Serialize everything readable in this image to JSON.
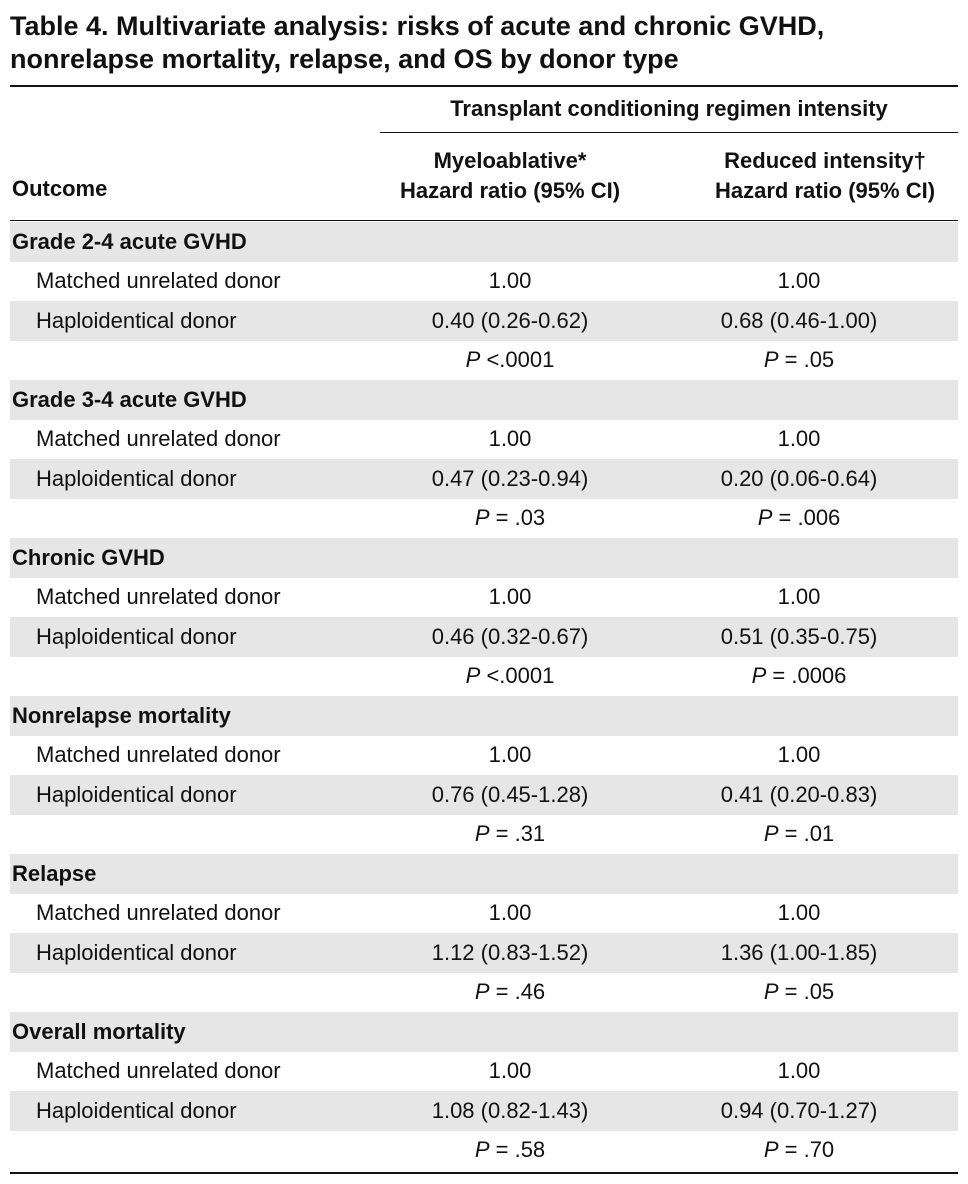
{
  "title": "Table 4. Multivariate analysis: risks of acute and chronic GVHD, nonrelapse mortality, relapse, and OS by donor type",
  "header": {
    "outcome": "Outcome",
    "spanning": "Transplant conditioning regimen intensity",
    "col1_line1": "Myeloablative*",
    "col1_line2": "Hazard ratio (95% CI)",
    "col2_line1": "Reduced intensity†",
    "col2_line2": "Hazard ratio (95% CI)"
  },
  "sections": [
    {
      "name": "Grade 2-4 acute GVHD",
      "rows": [
        {
          "label": "Matched unrelated donor",
          "mac": "1.00",
          "ric": "1.00"
        },
        {
          "label": "Haploidentical donor",
          "mac": "0.40 (0.26-0.62)",
          "ric": "0.68 (0.46-1.00)"
        }
      ],
      "p": {
        "mac": "<.0001",
        "ric": "= .05"
      }
    },
    {
      "name": "Grade 3-4 acute GVHD",
      "rows": [
        {
          "label": "Matched unrelated donor",
          "mac": "1.00",
          "ric": "1.00"
        },
        {
          "label": "Haploidentical donor",
          "mac": "0.47 (0.23-0.94)",
          "ric": "0.20 (0.06-0.64)"
        }
      ],
      "p": {
        "mac": "= .03",
        "ric": "= .006"
      }
    },
    {
      "name": "Chronic GVHD",
      "rows": [
        {
          "label": "Matched unrelated donor",
          "mac": "1.00",
          "ric": "1.00"
        },
        {
          "label": "Haploidentical donor",
          "mac": "0.46 (0.32-0.67)",
          "ric": "0.51 (0.35-0.75)"
        }
      ],
      "p": {
        "mac": "<.0001",
        "ric": "= .0006"
      }
    },
    {
      "name": "Nonrelapse mortality",
      "rows": [
        {
          "label": "Matched unrelated donor",
          "mac": "1.00",
          "ric": "1.00"
        },
        {
          "label": "Haploidentical donor",
          "mac": "0.76 (0.45-1.28)",
          "ric": "0.41 (0.20-0.83)"
        }
      ],
      "p": {
        "mac": "= .31",
        "ric": "= .01"
      }
    },
    {
      "name": "Relapse",
      "rows": [
        {
          "label": "Matched unrelated donor",
          "mac": "1.00",
          "ric": "1.00"
        },
        {
          "label": "Haploidentical donor",
          "mac": "1.12 (0.83-1.52)",
          "ric": "1.36 (1.00-1.85)"
        }
      ],
      "p": {
        "mac": "= .46",
        "ric": "= .05"
      }
    },
    {
      "name": "Overall mortality",
      "rows": [
        {
          "label": "Matched unrelated donor",
          "mac": "1.00",
          "ric": "1.00"
        },
        {
          "label": "Haploidentical donor",
          "mac": "1.08 (0.82-1.43)",
          "ric": "0.94 (0.70-1.27)"
        }
      ],
      "p": {
        "mac": "= .58",
        "ric": "= .70"
      }
    }
  ],
  "p_label": "P",
  "shade_color": "#e6e6e6"
}
